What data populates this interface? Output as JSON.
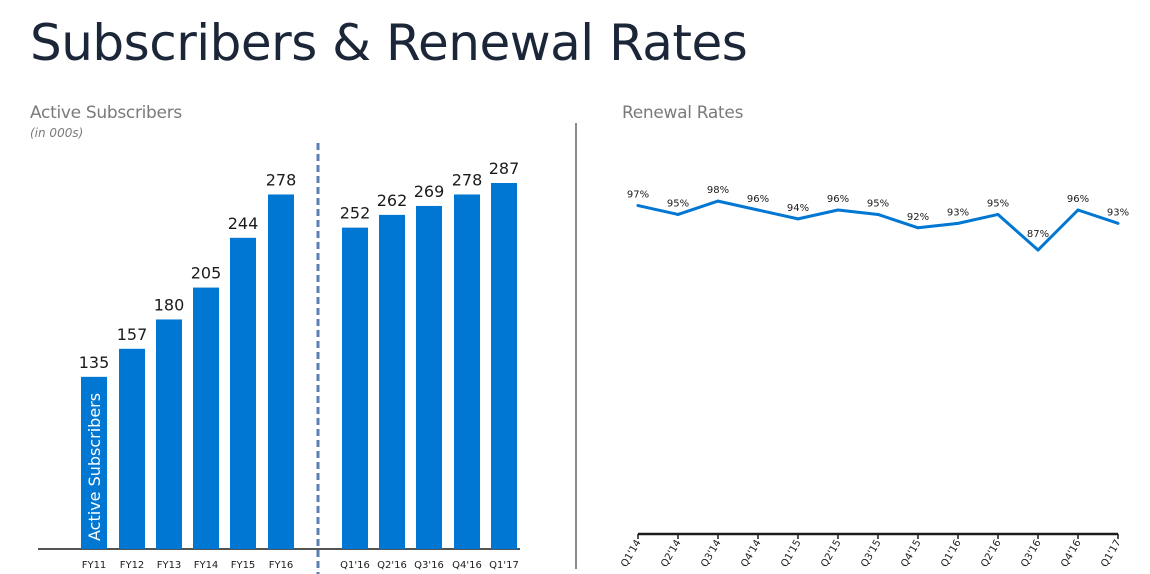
{
  "page": {
    "title": "Subscribers & Renewal Rates"
  },
  "chart_data": [
    {
      "type": "bar",
      "title": "Active Subscribers",
      "subtitle": "(in 000s)",
      "series_label": "Active Subscribers",
      "categories": [
        "FY11",
        "FY12",
        "FY13",
        "FY14",
        "FY15",
        "FY16",
        "Q1'16",
        "Q2'16",
        "Q3'16",
        "Q4'16",
        "Q1'17"
      ],
      "values": [
        135,
        157,
        180,
        205,
        244,
        278,
        252,
        262,
        269,
        278,
        287
      ],
      "ylim": [
        0,
        300
      ],
      "bar_color": "#0077d2",
      "separator_color": "#5a7fb0"
    },
    {
      "type": "line",
      "title": "Renewal Rates",
      "categories": [
        "Q1'14",
        "Q2'14",
        "Q3'14",
        "Q4'14",
        "Q1'15",
        "Q2'15",
        "Q3'15",
        "Q4'15",
        "Q1'16",
        "Q2'16",
        "Q3'16",
        "Q4'16",
        "Q1'17"
      ],
      "values": [
        97,
        95,
        98,
        96,
        94,
        96,
        95,
        92,
        93,
        95,
        87,
        96,
        93
      ],
      "labels": [
        "97%",
        "95%",
        "98%",
        "96%",
        "94%",
        "96%",
        "95%",
        "92%",
        "93%",
        "95%",
        "87%",
        "96%",
        "93%"
      ],
      "line_color": "#0077d2"
    }
  ]
}
